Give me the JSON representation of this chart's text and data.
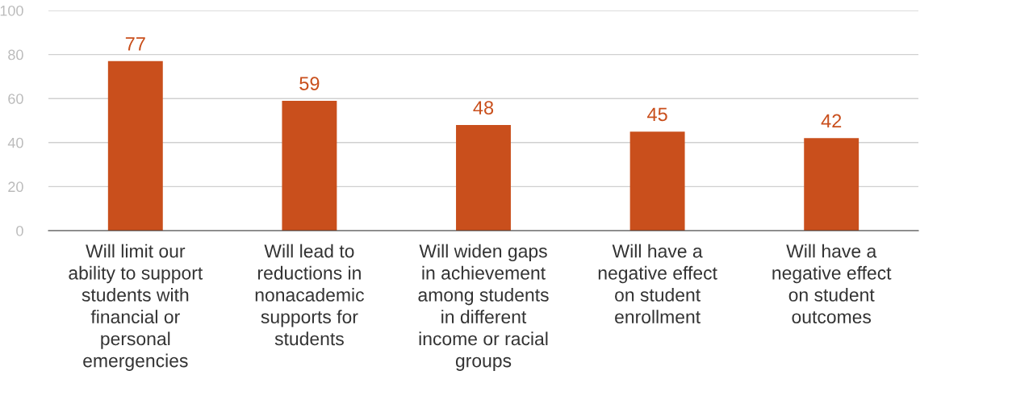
{
  "chart_data": {
    "type": "bar",
    "categories": [
      "Will limit our\nability to support\nstudents with\nfinancial or\npersonal\nemergencies",
      "Will lead to\nreductions in\nnonacademic\nsupports for\nstudents",
      "Will widen gaps\nin achievement\namong students\nin different\nincome or racial\ngroups",
      "Will have a\nnegative effect\non student\nenrollment",
      "Will have a\nnegative effect\non student\noutcomes"
    ],
    "values": [
      77,
      59,
      48,
      45,
      42
    ],
    "color": "#c94f1c",
    "ylim": [
      0,
      100
    ],
    "yticks": [
      0,
      20,
      40,
      60,
      80,
      100
    ],
    "grid": "y",
    "data_labels": true
  }
}
